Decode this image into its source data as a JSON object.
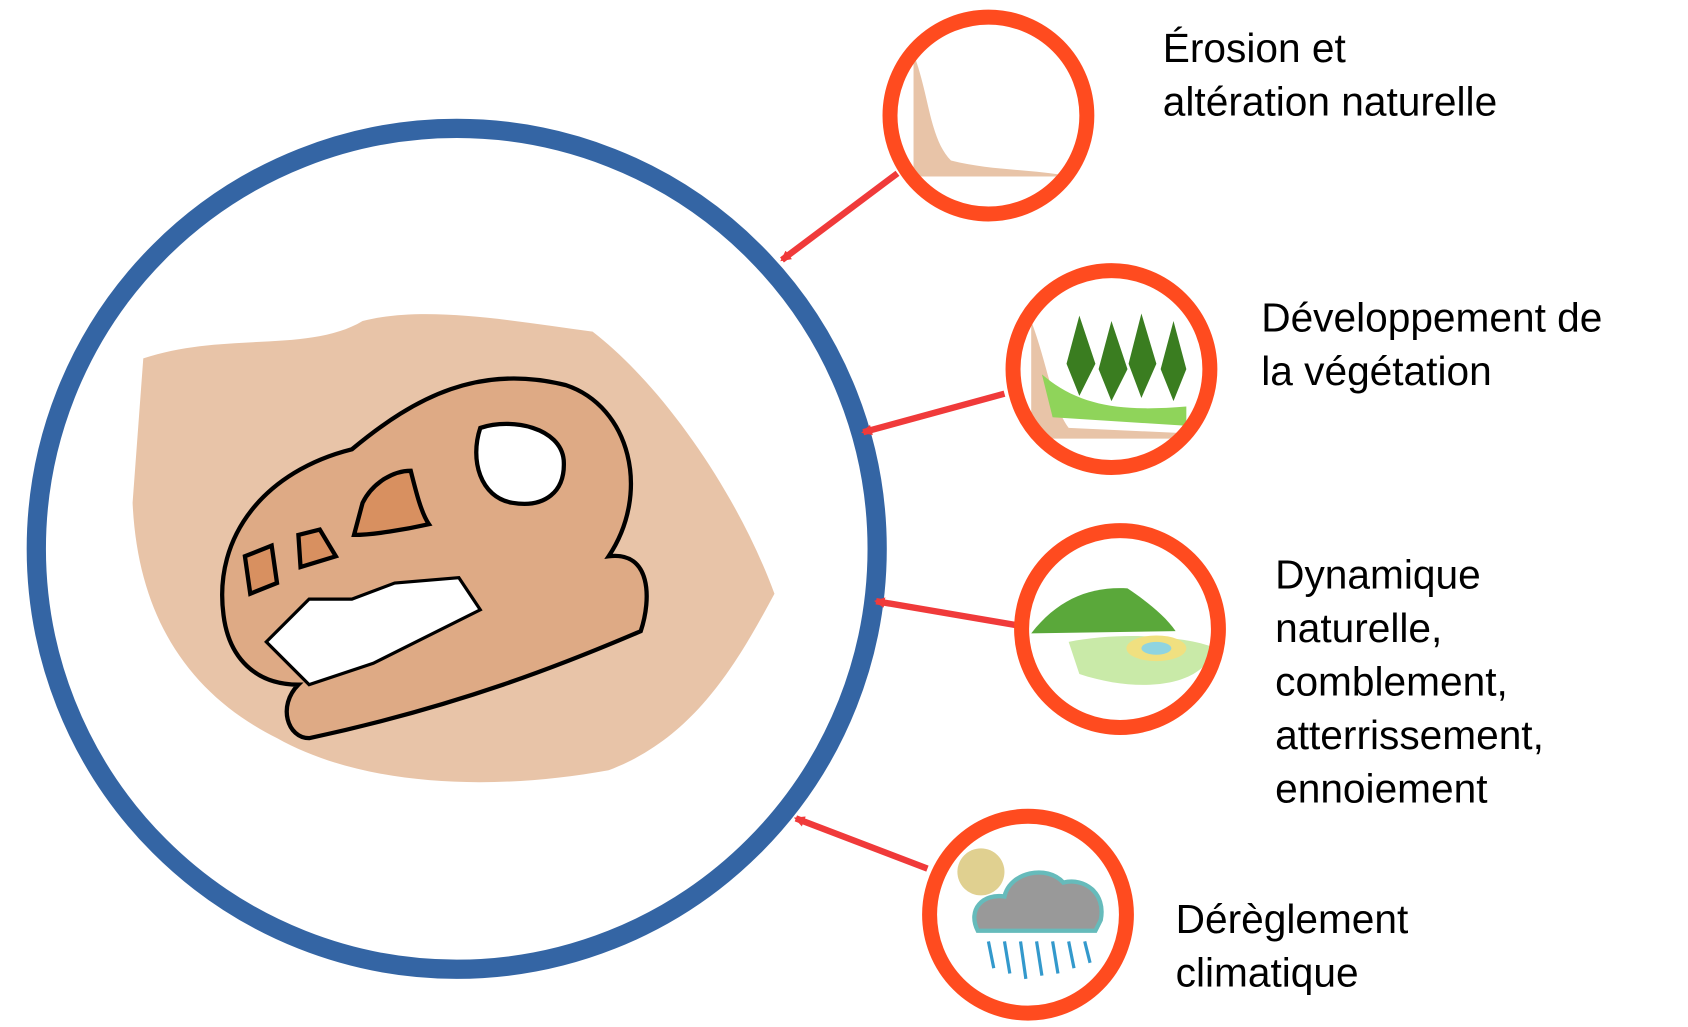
{
  "nodes": [
    {
      "lines": [
        "Érosion et",
        "altération naturelle"
      ]
    },
    {
      "lines": [
        "Développement de",
        "la végétation"
      ]
    },
    {
      "lines": [
        "Dynamique",
        "naturelle,",
        "comblement,",
        "atterrissement,",
        "ennoiement"
      ]
    },
    {
      "lines": [
        "Dérèglement",
        "climatique"
      ]
    }
  ]
}
